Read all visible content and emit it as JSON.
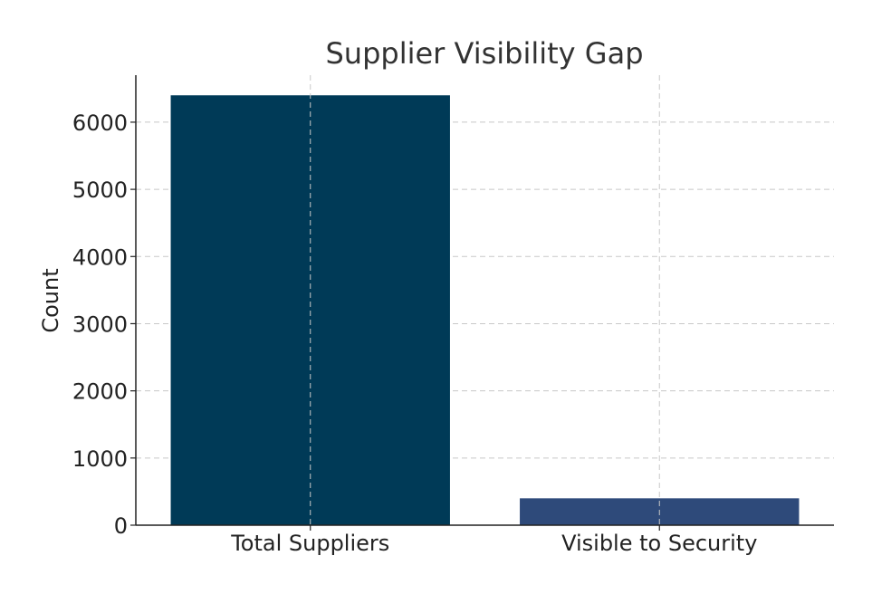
{
  "chart_data": {
    "type": "bar",
    "title": "Supplier Visibility Gap",
    "xlabel": "",
    "ylabel": "Count",
    "categories": [
      "Total Suppliers",
      "Visible to Security"
    ],
    "values": [
      6400,
      400
    ],
    "colors": [
      "#003a57",
      "#2e4a7a"
    ],
    "ylim": [
      0,
      6700
    ],
    "yticks": [
      0,
      1000,
      2000,
      3000,
      4000,
      5000,
      6000
    ],
    "grid": true,
    "grid_style": "dashed"
  }
}
